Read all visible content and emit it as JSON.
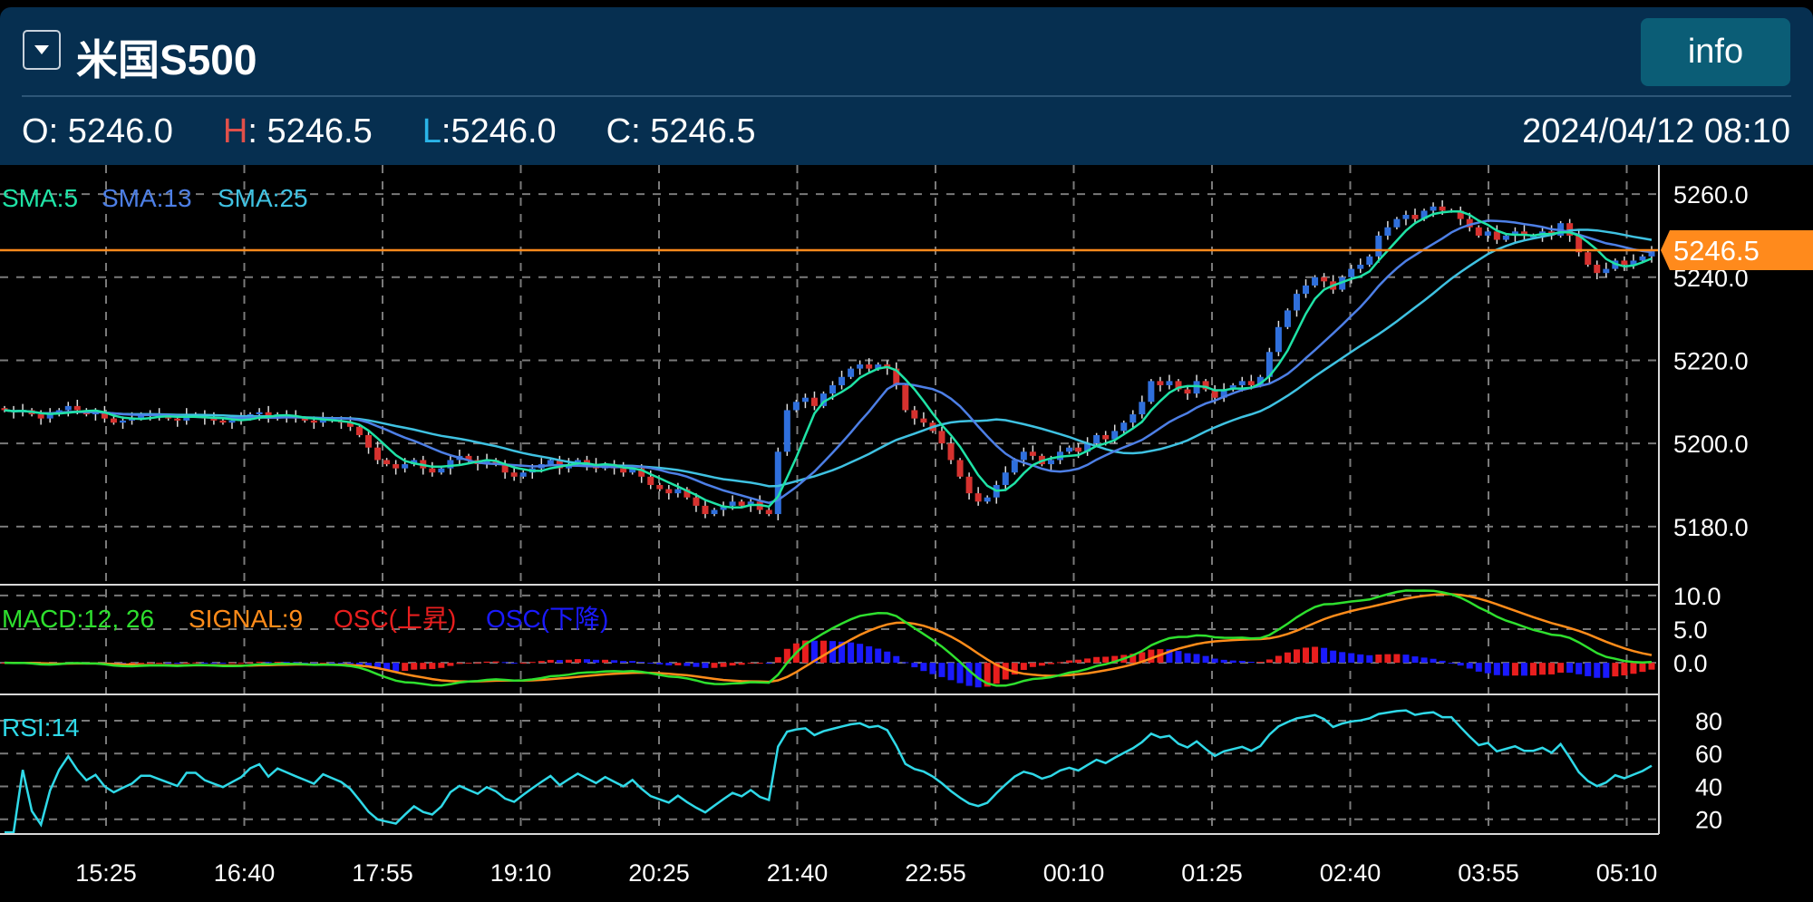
{
  "header": {
    "dropdown_icon": "triangle-down-icon",
    "title": "米国S500",
    "info_label": "info",
    "ohlc": [
      {
        "key": "O",
        "sep": ":",
        "value": "5246.0",
        "key_color": "#ffffff"
      },
      {
        "key": "H",
        "sep": ":",
        "value": "5246.5",
        "key_color": "#e0504a"
      },
      {
        "key": "L",
        "sep": ":",
        "value": "5246.0",
        "key_color": "#2ab4e8"
      },
      {
        "key": "C",
        "sep": ":",
        "value": "5246.5",
        "key_color": "#ffffff"
      }
    ],
    "datetime": "2024/04/12 08:10"
  },
  "chart_data": [
    {
      "type": "candlestick",
      "legend": [
        {
          "label": "SMA:5",
          "period": 5,
          "color": "#1fe3a6"
        },
        {
          "label": "SMA:13",
          "period": 13,
          "color": "#4d7fe6"
        },
        {
          "label": "SMA:25",
          "period": 25,
          "color": "#3fc2e2"
        }
      ],
      "up_color": "#2f6fdc",
      "down_color": "#d6322f",
      "current_price": 5246.5,
      "current_price_label": "5246.5",
      "current_price_color": "#ff8a1c",
      "ylim": [
        5166,
        5267
      ],
      "y_ticks": [
        "5260.0",
        "5240.0",
        "5220.0",
        "5200.0",
        "5180.0"
      ],
      "grid": true,
      "closes": [
        5208,
        5207.5,
        5208,
        5207,
        5206,
        5207,
        5208,
        5209,
        5208,
        5207,
        5207.5,
        5206,
        5205,
        5205.5,
        5206,
        5207,
        5207,
        5206.5,
        5206,
        5205.5,
        5207,
        5207,
        5206,
        5205.5,
        5205,
        5205.5,
        5206,
        5207,
        5207.5,
        5206,
        5207,
        5206.5,
        5206,
        5205.5,
        5205,
        5206,
        5205.5,
        5205,
        5204,
        5202,
        5199,
        5196,
        5195,
        5194,
        5195,
        5196,
        5194,
        5193,
        5194,
        5196,
        5197,
        5196,
        5195,
        5196,
        5195,
        5193,
        5192,
        5193,
        5194,
        5195,
        5196,
        5194,
        5195,
        5196,
        5195,
        5194,
        5195,
        5194,
        5193,
        5194,
        5192,
        5190,
        5189,
        5188,
        5189,
        5187,
        5185,
        5183,
        5184,
        5185,
        5186,
        5185,
        5186,
        5184,
        5183,
        5198,
        5208,
        5210,
        5211,
        5209,
        5212,
        5214,
        5216,
        5218,
        5219,
        5218,
        5219,
        5218,
        5214,
        5208,
        5206,
        5205,
        5203,
        5200,
        5196,
        5192,
        5188,
        5186,
        5187,
        5190,
        5193,
        5196,
        5198,
        5197,
        5195,
        5196,
        5198,
        5199,
        5198,
        5200,
        5202,
        5201,
        5203,
        5205,
        5207,
        5210,
        5215,
        5214,
        5215,
        5213,
        5212,
        5215,
        5213,
        5211,
        5213,
        5214,
        5215,
        5214,
        5216,
        5222,
        5228,
        5232,
        5236,
        5238,
        5240,
        5239,
        5237,
        5240,
        5242,
        5243,
        5245,
        5250,
        5252,
        5254,
        5255,
        5254,
        5256,
        5257,
        5256,
        5256,
        5254,
        5252,
        5250,
        5251,
        5249,
        5250,
        5251,
        5250,
        5250,
        5251,
        5250,
        5253,
        5250,
        5246,
        5243,
        5241,
        5242,
        5244,
        5243,
        5244,
        5245,
        5246.5
      ],
      "x_ticks": [
        "15:25",
        "16:40",
        "17:55",
        "19:10",
        "20:25",
        "21:40",
        "22:55",
        "00:10",
        "01:25",
        "02:40",
        "03:55",
        "05:10"
      ]
    },
    {
      "type": "macd",
      "legend": [
        {
          "label": "MACD:12, 26",
          "color": "#2ee02e"
        },
        {
          "label": "SIGNAL:9",
          "color": "#ff8c1a"
        },
        {
          "label": "OSC(上昇)",
          "color": "#e81e1e"
        },
        {
          "label": "OSC(下降)",
          "color": "#1a1aff"
        }
      ],
      "fast": 12,
      "slow": 26,
      "signal": 9,
      "ylim": [
        -4.7,
        11.6
      ],
      "y_ticks": [
        "10.0",
        "5.0",
        "0.0"
      ]
    },
    {
      "type": "rsi",
      "legend": [
        {
          "label": "RSI:14",
          "color": "#2fd9e8"
        }
      ],
      "period": 14,
      "ylim": [
        11,
        96
      ],
      "y_ticks": [
        "80",
        "60",
        "40",
        "20"
      ]
    }
  ]
}
